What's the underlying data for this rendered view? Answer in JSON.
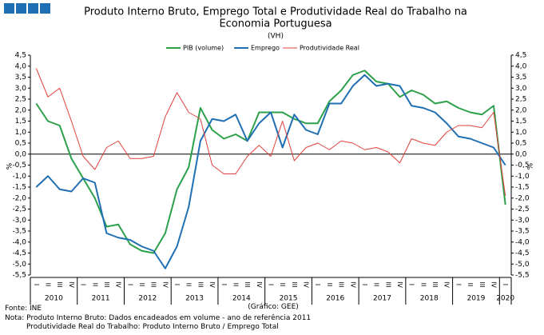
{
  "chart_data": {
    "type": "line",
    "title": "Produto Interno Bruto, Emprego Total e Produtividade Real do Trabalho na",
    "title_line2": "Economia Portuguesa",
    "subtitle": "(VH)",
    "y_label": "%",
    "y2_label": "%",
    "categories": [
      "I",
      "II",
      "III",
      "IV",
      "I",
      "II",
      "III",
      "IV",
      "I",
      "II",
      "III",
      "IV",
      "I",
      "II",
      "III",
      "IV",
      "I",
      "II",
      "III",
      "IV",
      "I",
      "II",
      "III",
      "IV",
      "I",
      "II",
      "III",
      "IV",
      "I",
      "II",
      "III",
      "IV",
      "I",
      "II",
      "III",
      "IV",
      "I",
      "II",
      "III",
      "IV",
      "I"
    ],
    "year_labels": [
      "2010",
      "2011",
      "2012",
      "2013",
      "2014",
      "2015",
      "2016",
      "2017",
      "2018",
      "2019",
      "2020"
    ],
    "series": [
      {
        "name": "PIB (volume)",
        "color": "#2ca04b",
        "width": 2,
        "values": [
          2.3,
          1.5,
          1.3,
          -0.2,
          -1.1,
          -2.0,
          -3.3,
          -3.2,
          -4.1,
          -4.4,
          -4.5,
          -3.6,
          -1.6,
          -0.6,
          2.1,
          1.1,
          0.7,
          0.9,
          0.6,
          1.9,
          1.9,
          1.9,
          1.6,
          1.4,
          1.4,
          2.4,
          2.9,
          3.6,
          3.8,
          3.3,
          3.2,
          2.6,
          2.9,
          2.7,
          2.3,
          2.4,
          2.1,
          1.9,
          1.8,
          2.2,
          -2.3
        ]
      },
      {
        "name": "Emprego",
        "color": "#1f6fb4",
        "width": 2,
        "values": [
          -1.5,
          -1.0,
          -1.6,
          -1.7,
          -1.1,
          -1.3,
          -3.6,
          -3.8,
          -3.9,
          -4.2,
          -4.4,
          -5.2,
          -4.2,
          -2.4,
          0.6,
          1.6,
          1.5,
          1.8,
          0.6,
          1.4,
          1.9,
          0.3,
          1.8,
          1.1,
          0.9,
          2.3,
          2.3,
          3.1,
          3.6,
          3.1,
          3.2,
          3.1,
          2.2,
          2.1,
          1.9,
          1.4,
          0.8,
          0.7,
          0.5,
          0.3,
          -0.5
        ]
      },
      {
        "name": "Produtividade Real",
        "color": "#e0403a",
        "width": 1,
        "values": [
          3.9,
          2.6,
          3.0,
          1.5,
          -0.1,
          -0.7,
          0.3,
          0.6,
          -0.2,
          -0.2,
          -0.1,
          1.7,
          2.8,
          1.9,
          1.6,
          -0.5,
          -0.9,
          -0.9,
          -0.1,
          0.4,
          -0.1,
          1.5,
          -0.3,
          0.3,
          0.5,
          0.2,
          0.6,
          0.5,
          0.2,
          0.3,
          0.1,
          -0.4,
          0.7,
          0.5,
          0.4,
          1.0,
          1.3,
          1.3,
          1.2,
          1.9,
          -1.9
        ]
      }
    ],
    "ylim": [
      -5.5,
      4.5
    ],
    "yticks": [
      {
        "value": 4.5,
        "label": "4,5"
      },
      {
        "value": 4,
        "label": "4,0"
      },
      {
        "value": 3.5,
        "label": "3,5"
      },
      {
        "value": 3,
        "label": "3,0"
      },
      {
        "value": 2.5,
        "label": "2,5"
      },
      {
        "value": 2,
        "label": "2,0"
      },
      {
        "value": 1.5,
        "label": "1,5"
      },
      {
        "value": 1,
        "label": "1,0"
      },
      {
        "value": 0.5,
        "label": "0,5"
      },
      {
        "value": 0,
        "label": "0,0"
      },
      {
        "value": -0.5,
        "label": "-0,5"
      },
      {
        "value": -1,
        "label": "-1,0"
      },
      {
        "value": -1.5,
        "label": "-1,5"
      },
      {
        "value": -2,
        "label": "-2,0"
      },
      {
        "value": -2.5,
        "label": "-2,5"
      },
      {
        "value": -3,
        "label": "-3,0"
      },
      {
        "value": -3.5,
        "label": "-3,5"
      },
      {
        "value": -4,
        "label": "-4,0"
      },
      {
        "value": -4.5,
        "label": "-4,5"
      },
      {
        "value": -5,
        "label": "-5,0"
      },
      {
        "value": -5.5,
        "label": "-5,5"
      }
    ],
    "y2lim": [
      -5.5,
      4.5
    ],
    "y2ticks": [
      {
        "value": 4.5,
        "label": "4,5"
      },
      {
        "value": 4,
        "label": "4,0"
      },
      {
        "value": 3.5,
        "label": "3,5"
      },
      {
        "value": 3,
        "label": "3,0"
      },
      {
        "value": 2.5,
        "label": "2,5"
      },
      {
        "value": 2,
        "label": "2,0"
      },
      {
        "value": 1.5,
        "label": "1,5"
      },
      {
        "value": 1,
        "label": "1,0"
      },
      {
        "value": 0.5,
        "label": "0,5"
      },
      {
        "value": 0,
        "label": "0,0"
      },
      {
        "value": -0.5,
        "label": "-0,5"
      },
      {
        "value": -1,
        "label": "-1,0"
      },
      {
        "value": -1.5,
        "label": "-1,5"
      },
      {
        "value": -2,
        "label": "-2,0"
      },
      {
        "value": -2.5,
        "label": "-2,5"
      },
      {
        "value": -3,
        "label": "-3,0"
      },
      {
        "value": -3.5,
        "label": "-3,5"
      },
      {
        "value": -4,
        "label": "-4,0"
      },
      {
        "value": -4.5,
        "label": "-4,5"
      },
      {
        "value": -5,
        "label": "-5,0"
      },
      {
        "value": -5.5,
        "label": "-5,5"
      }
    ],
    "source": "Fonte: INE",
    "credit": "(Gráfico: GEE)",
    "note_line1": "Nota: Produto Interno Bruto: Dados encadeados em volume - ano de referência 2011",
    "note_line2": "Produtividade Real do Trabalho: Produto Interno Bruto / Emprego Total"
  }
}
